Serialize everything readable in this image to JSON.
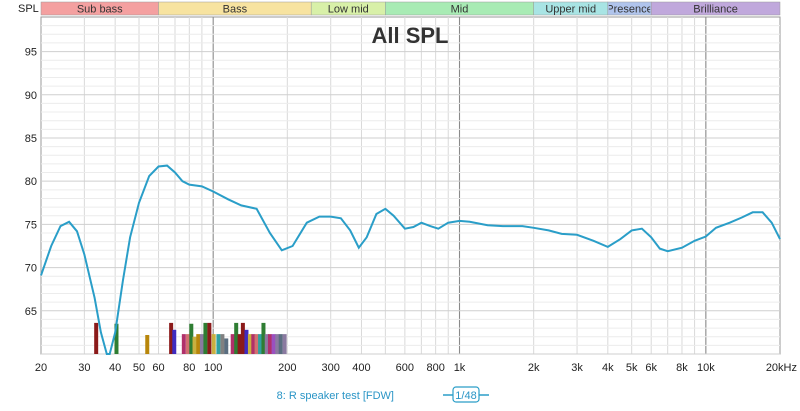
{
  "chart_data": {
    "type": "line",
    "title": "All SPL",
    "ylabel": "SPL",
    "xlabel": "",
    "x_scale": "log",
    "xlim": [
      20,
      20000
    ],
    "ylim": [
      60,
      99
    ],
    "grid": true,
    "y_ticks": [
      65,
      70,
      75,
      80,
      85,
      90,
      95
    ],
    "x_ticks": [
      {
        "value": 20,
        "label": "20"
      },
      {
        "value": 30,
        "label": "30"
      },
      {
        "value": 40,
        "label": "40"
      },
      {
        "value": 50,
        "label": "50"
      },
      {
        "value": 60,
        "label": "60"
      },
      {
        "value": 80,
        "label": "80"
      },
      {
        "value": 100,
        "label": "100"
      },
      {
        "value": 200,
        "label": "200"
      },
      {
        "value": 300,
        "label": "300"
      },
      {
        "value": 400,
        "label": "400"
      },
      {
        "value": 600,
        "label": "600"
      },
      {
        "value": 800,
        "label": "800"
      },
      {
        "value": 1000,
        "label": "1k"
      },
      {
        "value": 2000,
        "label": "2k"
      },
      {
        "value": 3000,
        "label": "3k"
      },
      {
        "value": 4000,
        "label": "4k"
      },
      {
        "value": 5000,
        "label": "5k"
      },
      {
        "value": 6000,
        "label": "6k"
      },
      {
        "value": 8000,
        "label": "8k"
      },
      {
        "value": 10000,
        "label": "10k"
      },
      {
        "value": 20000,
        "label": "20kHz"
      }
    ],
    "bands": [
      {
        "name": "Sub bass",
        "from": 20,
        "to": 60,
        "color": "#f4a0a0"
      },
      {
        "name": "Bass",
        "from": 60,
        "to": 250,
        "color": "#f7e3a0"
      },
      {
        "name": "Low mid",
        "from": 250,
        "to": 500,
        "color": "#d8f0a8"
      },
      {
        "name": "Mid",
        "from": 500,
        "to": 2000,
        "color": "#a8ebb4"
      },
      {
        "name": "Upper mid",
        "from": 2000,
        "to": 4000,
        "color": "#a8e4e4"
      },
      {
        "name": "Presence",
        "from": 4000,
        "to": 6000,
        "color": "#b0c4ec"
      },
      {
        "name": "Brilliance",
        "from": 6000,
        "to": 20000,
        "color": "#c0a8dc"
      }
    ],
    "series": [
      {
        "name": "8: R speaker test [FDW]",
        "color": "#2a9ec8",
        "points": [
          [
            20,
            69.1
          ],
          [
            22,
            72.5
          ],
          [
            24,
            74.8
          ],
          [
            26,
            75.3
          ],
          [
            28,
            74.2
          ],
          [
            30,
            71.5
          ],
          [
            33,
            66.5
          ],
          [
            35,
            62.5
          ],
          [
            37,
            60.0
          ],
          [
            38,
            60.0
          ],
          [
            40,
            62.5
          ],
          [
            43,
            68.5
          ],
          [
            46,
            73.5
          ],
          [
            50,
            77.5
          ],
          [
            55,
            80.6
          ],
          [
            60,
            81.7
          ],
          [
            65,
            81.8
          ],
          [
            70,
            81.0
          ],
          [
            75,
            80.0
          ],
          [
            80,
            79.6
          ],
          [
            90,
            79.4
          ],
          [
            100,
            78.8
          ],
          [
            115,
            77.9
          ],
          [
            130,
            77.2
          ],
          [
            150,
            76.8
          ],
          [
            170,
            74.0
          ],
          [
            190,
            72.0
          ],
          [
            210,
            72.5
          ],
          [
            240,
            75.2
          ],
          [
            270,
            75.9
          ],
          [
            300,
            75.9
          ],
          [
            330,
            75.7
          ],
          [
            360,
            74.3
          ],
          [
            390,
            72.3
          ],
          [
            420,
            73.5
          ],
          [
            460,
            76.2
          ],
          [
            500,
            76.8
          ],
          [
            540,
            76.0
          ],
          [
            600,
            74.5
          ],
          [
            650,
            74.7
          ],
          [
            700,
            75.2
          ],
          [
            760,
            74.8
          ],
          [
            820,
            74.5
          ],
          [
            900,
            75.2
          ],
          [
            1000,
            75.4
          ],
          [
            1100,
            75.3
          ],
          [
            1300,
            74.9
          ],
          [
            1500,
            74.8
          ],
          [
            1800,
            74.8
          ],
          [
            2000,
            74.6
          ],
          [
            2300,
            74.3
          ],
          [
            2600,
            73.9
          ],
          [
            3000,
            73.8
          ],
          [
            3500,
            73.1
          ],
          [
            4000,
            72.4
          ],
          [
            4500,
            73.3
          ],
          [
            5000,
            74.3
          ],
          [
            5500,
            74.5
          ],
          [
            6000,
            73.5
          ],
          [
            6500,
            72.2
          ],
          [
            7000,
            71.9
          ],
          [
            8000,
            72.3
          ],
          [
            9000,
            73.1
          ],
          [
            10000,
            73.6
          ],
          [
            11000,
            74.6
          ],
          [
            12500,
            75.2
          ],
          [
            14000,
            75.8
          ],
          [
            15500,
            76.4
          ],
          [
            17000,
            76.4
          ],
          [
            18500,
            75.2
          ],
          [
            20000,
            73.3
          ]
        ]
      }
    ],
    "markers": [
      {
        "x": 33.5,
        "value": 63.6,
        "color": "#8b1a1a"
      },
      {
        "x": 40.5,
        "value": 63.5,
        "color": "#2e7d32"
      },
      {
        "x": 54,
        "value": 62.2,
        "color": "#b8860b"
      },
      {
        "x": 67.5,
        "value": 63.6,
        "color": "#8b1a1a"
      },
      {
        "x": 69.5,
        "value": 62.8,
        "color": "#3f2bbf"
      },
      {
        "x": 76,
        "value": 62.3,
        "color": "#b0306a"
      },
      {
        "x": 79,
        "value": 62.3,
        "color": "#d17070"
      },
      {
        "x": 81.5,
        "value": 63.5,
        "color": "#2e7d32"
      },
      {
        "x": 84,
        "value": 62.0,
        "color": "#c9b040"
      },
      {
        "x": 87,
        "value": 62.3,
        "color": "#b8860b"
      },
      {
        "x": 90,
        "value": 62.3,
        "color": "#8a7aa0"
      },
      {
        "x": 93,
        "value": 63.6,
        "color": "#2e7d32"
      },
      {
        "x": 96.5,
        "value": 63.6,
        "color": "#8b1a1a"
      },
      {
        "x": 100.5,
        "value": 62.3,
        "color": "#c9b040"
      },
      {
        "x": 105,
        "value": 62.3,
        "color": "#30a0a0"
      },
      {
        "x": 109,
        "value": 62.3,
        "color": "#808080"
      },
      {
        "x": 113,
        "value": 61.8,
        "color": "#5a6e80"
      },
      {
        "x": 120,
        "value": 62.3,
        "color": "#b0306a"
      },
      {
        "x": 124,
        "value": 63.6,
        "color": "#2e7d32"
      },
      {
        "x": 128,
        "value": 62.3,
        "color": "#8b1a1a"
      },
      {
        "x": 132,
        "value": 63.6,
        "color": "#8b1a1a"
      },
      {
        "x": 136.5,
        "value": 62.8,
        "color": "#3f2bbf"
      },
      {
        "x": 141,
        "value": 62.3,
        "color": "#c9b040"
      },
      {
        "x": 145.5,
        "value": 62.3,
        "color": "#b0306a"
      },
      {
        "x": 150,
        "value": 62.3,
        "color": "#d17070"
      },
      {
        "x": 155,
        "value": 62.3,
        "color": "#30a0a0"
      },
      {
        "x": 160,
        "value": 63.6,
        "color": "#2e7d32"
      },
      {
        "x": 165,
        "value": 62.3,
        "color": "#8a7aa0"
      },
      {
        "x": 170,
        "value": 62.3,
        "color": "#b0306a"
      },
      {
        "x": 176,
        "value": 62.3,
        "color": "#9a50c0"
      },
      {
        "x": 182,
        "value": 62.3,
        "color": "#8a7aa0"
      },
      {
        "x": 188,
        "value": 62.3,
        "color": "#5a6e80"
      },
      {
        "x": 195,
        "value": 62.3,
        "color": "#8a7aa0"
      }
    ]
  },
  "legend": {
    "label": "8: R speaker test [FDW]",
    "smoothing": "1/48"
  }
}
